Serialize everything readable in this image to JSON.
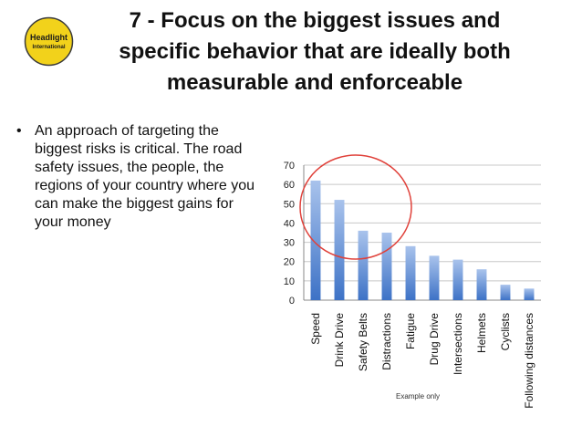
{
  "slide": {
    "title": "7 - Focus on the biggest issues and specific behavior that are ideally both measurable and enforceable",
    "logo_text_line1": "Headlight",
    "logo_text_line2": "International",
    "logo_color": "#f2d21b",
    "bullet_char": "•",
    "bullet_text": "An approach of targeting the biggest risks is critical. The road safety issues, the people, the regions of your country where you can make the biggest gains for your money"
  },
  "chart_data": {
    "type": "bar",
    "categories": [
      "Speed",
      "Drink Drive",
      "Safety Belts",
      "Distractions",
      "Fatigue",
      "Drug Drive",
      "Intersections",
      "Helmets",
      "Cyclists",
      "Following distances"
    ],
    "values": [
      62,
      52,
      36,
      35,
      28,
      23,
      21,
      16,
      8,
      6
    ],
    "ylim": [
      0,
      70
    ],
    "yticks": [
      0,
      10,
      20,
      30,
      40,
      50,
      60,
      70
    ],
    "grid": true,
    "annotation": "Example only",
    "bar_color_top": "#a9c3ec",
    "bar_color_bottom": "#3d72c6",
    "highlight_circle_color": "#e0413a"
  }
}
